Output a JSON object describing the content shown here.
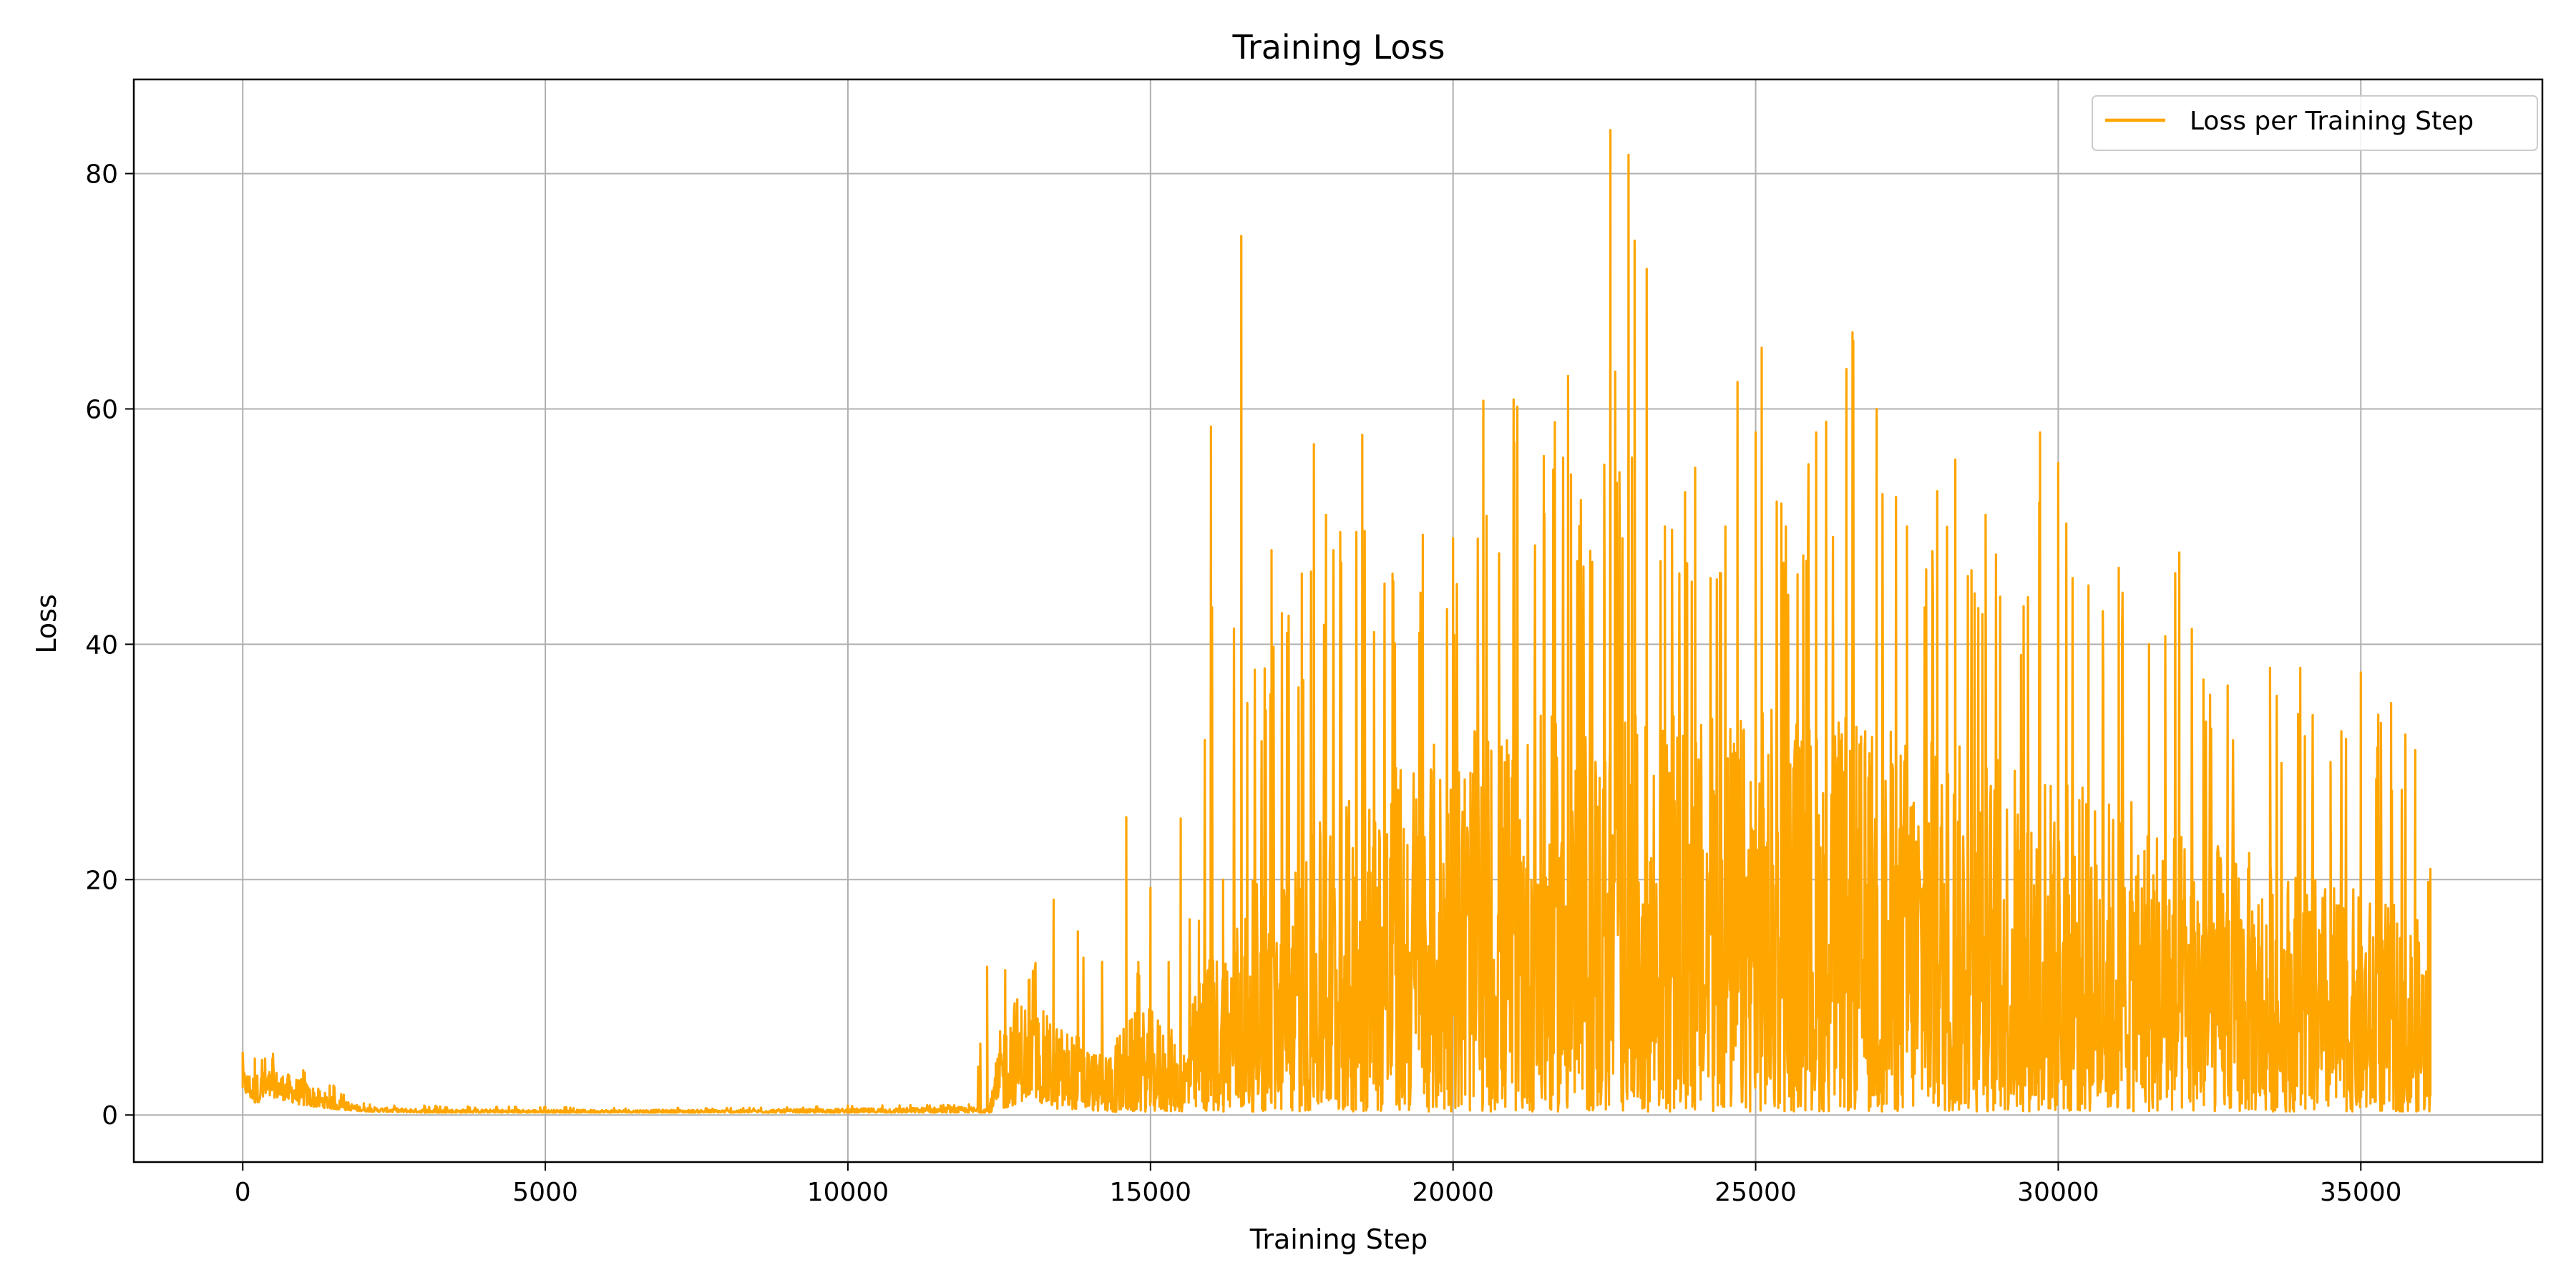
{
  "colors": {
    "series": "#ffa500",
    "grid": "#b0b0b0",
    "axes": "#000000",
    "legend_border": "#cccccc"
  },
  "chart_data": {
    "type": "line",
    "title": "Training Loss",
    "xlabel": "Training Step",
    "ylabel": "Loss",
    "xlim": [
      -1800,
      38000
    ],
    "ylim": [
      -4,
      88
    ],
    "xticks": [
      0,
      5000,
      10000,
      15000,
      20000,
      25000,
      30000,
      35000
    ],
    "xtick_labels": [
      "0",
      "5000",
      "10000",
      "15000",
      "20000",
      "25000",
      "30000",
      "35000"
    ],
    "yticks": [
      0,
      20,
      40,
      60,
      80
    ],
    "ytick_labels": [
      "0",
      "20",
      "40",
      "60",
      "80"
    ],
    "grid": true,
    "legend": {
      "position": "top-right",
      "entries": [
        "Loss per Training Step"
      ]
    },
    "series": [
      {
        "name": "Loss per Training Step",
        "color": "#ffa500",
        "envelope": {
          "x": [
            0,
            200,
            500,
            1000,
            1500,
            2000,
            3000,
            5000,
            8000,
            10000,
            12000,
            12300,
            12350,
            12600,
            13000,
            13400,
            13800,
            14200,
            14600,
            14800,
            15000,
            15300,
            15500,
            15800,
            16000,
            16200,
            16500,
            16600,
            17000,
            17500,
            17700,
            17900,
            18500,
            19000,
            19500,
            20000,
            20500,
            21000,
            21500,
            21900,
            22300,
            22600,
            22800,
            22900,
            23000,
            23200,
            23500,
            24000,
            24500,
            24700,
            25000,
            25100,
            25500,
            26000,
            26500,
            26600,
            27000,
            27500,
            28000,
            28300,
            28800,
            29500,
            29700,
            30000,
            30500,
            31000,
            31500,
            32000,
            32400,
            32800,
            33500,
            34000,
            34500,
            35000,
            35500,
            35900,
            36150
          ],
          "y_max": [
            5.3,
            4.8,
            5.2,
            3.8,
            2.5,
            1.0,
            0.8,
            0.7,
            0.6,
            0.8,
            0.9,
            12.6,
            1.0,
            12.3,
            11.5,
            18.3,
            15.6,
            13.0,
            25.3,
            13.0,
            19.3,
            13.0,
            25.2,
            16.5,
            58.5,
            20.0,
            74.7,
            35.0,
            48.0,
            46.0,
            57.0,
            51.0,
            57.8,
            46.0,
            49.3,
            49.0,
            60.7,
            60.8,
            56.0,
            62.8,
            47.0,
            83.7,
            49.0,
            81.6,
            74.3,
            71.9,
            50.0,
            55.0,
            50.0,
            62.3,
            58.0,
            65.2,
            50.0,
            58.0,
            63.4,
            66.5,
            60.0,
            50.0,
            53.0,
            55.7,
            51.0,
            44.0,
            58.0,
            55.4,
            45.0,
            46.5,
            40.0,
            47.8,
            37.0,
            36.5,
            38.0,
            38.0,
            30.0,
            37.6,
            35.0,
            31.0,
            21.0
          ],
          "y_floor": [
            2.0,
            1.0,
            1.5,
            0.8,
            0.5,
            0.3,
            0.2,
            0.2,
            0.2,
            0.2,
            0.2,
            0.2,
            0.2,
            0.5,
            1.5,
            0.5,
            0.5,
            0.3,
            0.2,
            0.3,
            0.3,
            0.3,
            0.3,
            0.3,
            0.3,
            0.3,
            0.3,
            0.3,
            0.3,
            0.3,
            0.3,
            0.3,
            0.3,
            0.3,
            0.3,
            0.3,
            0.3,
            0.3,
            0.3,
            0.3,
            0.3,
            0.3,
            0.3,
            0.3,
            0.3,
            0.3,
            0.3,
            0.3,
            0.3,
            0.3,
            0.3,
            0.3,
            0.3,
            0.3,
            0.3,
            0.3,
            0.3,
            0.3,
            0.3,
            0.3,
            0.3,
            0.3,
            0.3,
            0.3,
            0.3,
            0.3,
            0.3,
            0.3,
            0.3,
            0.3,
            0.3,
            0.3,
            0.3,
            0.3,
            0.3,
            0.3,
            0.3
          ],
          "dense_max": [
            4.0,
            3.5,
            4.0,
            3.0,
            1.5,
            0.7,
            0.5,
            0.45,
            0.45,
            0.55,
            0.7,
            0.7,
            0.7,
            10.5,
            10.0,
            8.0,
            7.0,
            5.0,
            8.0,
            9.0,
            9.0,
            8.0,
            5.0,
            12.0,
            14.0,
            15.0,
            18.0,
            20.0,
            20.0,
            22.0,
            24.0,
            26.0,
            28.0,
            30.0,
            32.0,
            32.0,
            33.0,
            34.0,
            34.0,
            34.0,
            34.0,
            34.0,
            34.0,
            34.0,
            34.0,
            34.0,
            34.0,
            34.0,
            34.0,
            34.0,
            35.0,
            35.0,
            35.0,
            34.0,
            34.0,
            34.0,
            33.0,
            33.0,
            32.0,
            32.0,
            31.0,
            30.0,
            30.0,
            29.0,
            28.0,
            27.0,
            26.0,
            25.0,
            24.0,
            23.0,
            22.0,
            21.0,
            20.0,
            19.0,
            18.0,
            17.0,
            15.0
          ]
        }
      }
    ]
  }
}
